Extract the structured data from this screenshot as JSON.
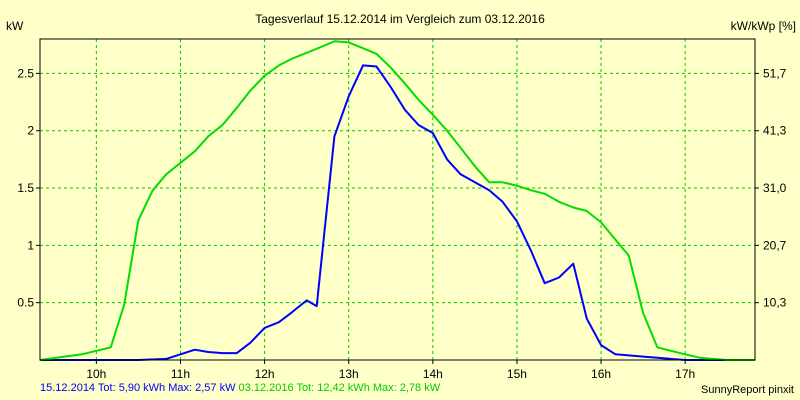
{
  "chart_data": {
    "type": "line",
    "title": "Tagesverlauf 15.12.2014 im Vergleich zum 03.12.2016",
    "ylabel_left": "kW",
    "ylabel_right": "kW/kWp [%]",
    "x_ticks": [
      "10h",
      "11h",
      "12h",
      "13h",
      "14h",
      "15h",
      "16h",
      "17h"
    ],
    "y_ticks_left": [
      "0.5",
      "1",
      "1.5",
      "2",
      "2.5"
    ],
    "y_ticks_left_values": [
      0.5,
      1,
      1.5,
      2,
      2.5
    ],
    "y_ticks_right": [
      "10,3",
      "20,7",
      "31,0",
      "41,3",
      "51,7"
    ],
    "xlim": [
      9.33,
      17.83
    ],
    "ylim": [
      0,
      2.8
    ],
    "grid": true,
    "series": [
      {
        "name": "15.12.2014",
        "color": "#0000ff",
        "summary": "15.12.2014 Tot: 5,90 kWh Max: 2,57 kW",
        "x": [
          9.33,
          10.0,
          10.5,
          10.83,
          11.0,
          11.17,
          11.33,
          11.5,
          11.67,
          11.83,
          12.0,
          12.17,
          12.33,
          12.5,
          12.62,
          12.83,
          13.0,
          13.17,
          13.33,
          13.5,
          13.67,
          13.83,
          14.0,
          14.17,
          14.33,
          14.5,
          14.67,
          14.83,
          15.0,
          15.17,
          15.33,
          15.5,
          15.67,
          15.83,
          16.0,
          16.17,
          16.33,
          16.5,
          16.67,
          16.83,
          17.0,
          17.17,
          17.33,
          17.5,
          17.83
        ],
        "y": [
          0,
          0,
          0,
          0.01,
          0.05,
          0.09,
          0.07,
          0.06,
          0.06,
          0.15,
          0.28,
          0.33,
          0.42,
          0.52,
          0.47,
          1.95,
          2.3,
          2.57,
          2.56,
          2.38,
          2.18,
          2.05,
          1.98,
          1.75,
          1.62,
          1.55,
          1.48,
          1.38,
          1.21,
          0.95,
          0.67,
          0.72,
          0.84,
          0.36,
          0.13,
          0.05,
          0.04,
          0.03,
          0.02,
          0.01,
          0,
          0,
          0,
          0,
          0
        ]
      },
      {
        "name": "03.12.2016",
        "color": "#00dd00",
        "summary": "03.12.2016 Tot: 12,42 kWh Max: 2,78 kW",
        "x": [
          9.33,
          9.83,
          10.0,
          10.17,
          10.33,
          10.5,
          10.67,
          10.83,
          11.0,
          11.17,
          11.33,
          11.5,
          11.67,
          11.83,
          12.0,
          12.17,
          12.33,
          12.5,
          12.67,
          12.83,
          13.0,
          13.17,
          13.33,
          13.5,
          13.67,
          13.83,
          14.0,
          14.17,
          14.33,
          14.5,
          14.67,
          14.83,
          15.0,
          15.17,
          15.33,
          15.5,
          15.67,
          15.83,
          16.0,
          16.17,
          16.33,
          16.5,
          16.67,
          16.83,
          17.0,
          17.17,
          17.33,
          17.5,
          17.83
        ],
        "y": [
          0,
          0.05,
          0.08,
          0.11,
          0.48,
          1.22,
          1.48,
          1.62,
          1.72,
          1.82,
          1.95,
          2.05,
          2.2,
          2.35,
          2.48,
          2.57,
          2.63,
          2.68,
          2.73,
          2.78,
          2.77,
          2.72,
          2.67,
          2.55,
          2.41,
          2.27,
          2.14,
          2.0,
          1.85,
          1.69,
          1.55,
          1.55,
          1.52,
          1.48,
          1.45,
          1.38,
          1.33,
          1.3,
          1.2,
          1.05,
          0.91,
          0.41,
          0.11,
          0.08,
          0.05,
          0.02,
          0.01,
          0,
          0
        ]
      }
    ]
  },
  "credit": "SunnyReport pinxit"
}
